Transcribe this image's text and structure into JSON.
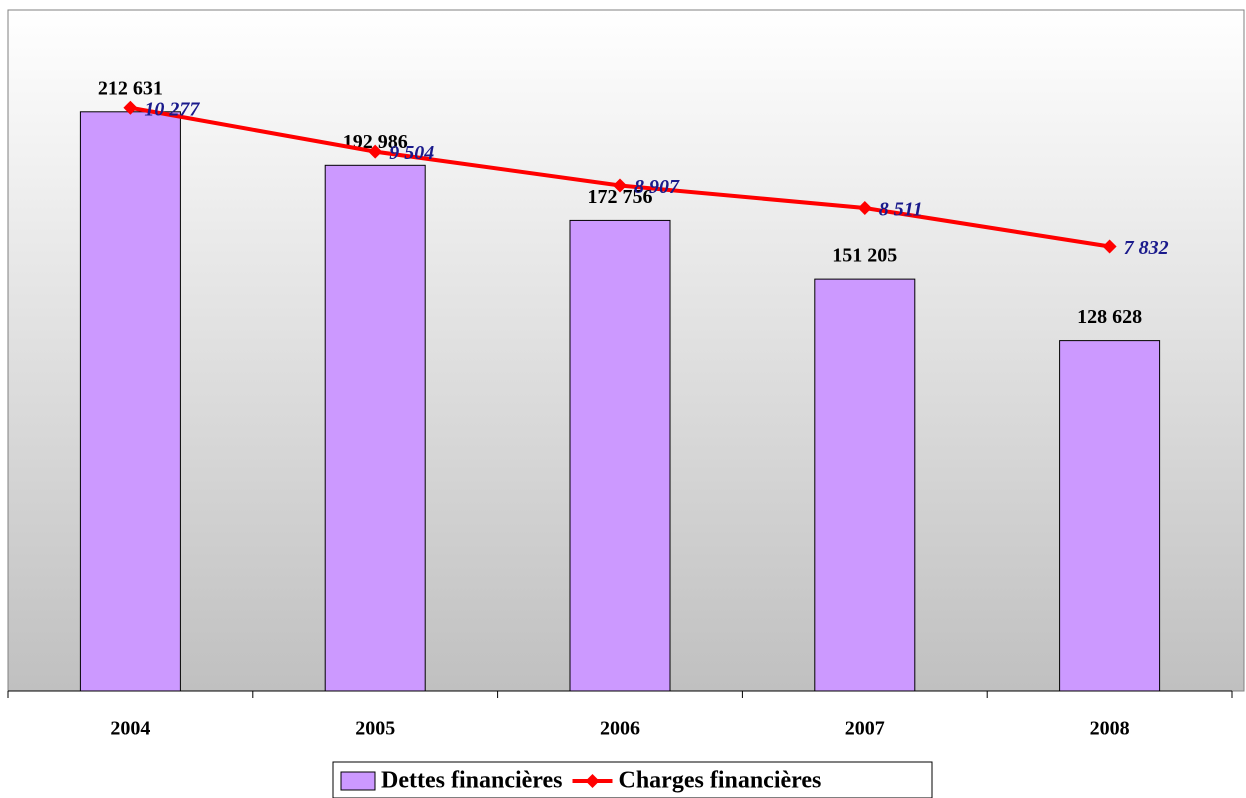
{
  "chart_data": {
    "type": "bar_line",
    "categories": [
      "2004",
      "2005",
      "2006",
      "2007",
      "2008"
    ],
    "series": [
      {
        "name": "Dettes financières",
        "type": "bar",
        "color": "#cc99ff",
        "values": [
          212631,
          192986,
          172756,
          151205,
          128628
        ],
        "value_labels": [
          "212 631",
          "192 986",
          "172 756",
          "151 205",
          "128 628"
        ]
      },
      {
        "name": "Charges financières",
        "type": "line",
        "color": "#ff0000",
        "axis": "y2",
        "values": [
          10277,
          9504,
          8907,
          8511,
          7832
        ],
        "value_labels": [
          "10 277",
          "9 504",
          "8 907",
          "8 511",
          "7 832"
        ]
      }
    ],
    "ylim": [
      0,
      250000
    ],
    "y2lim": [
      0,
      12000
    ],
    "legend": "bottom"
  }
}
